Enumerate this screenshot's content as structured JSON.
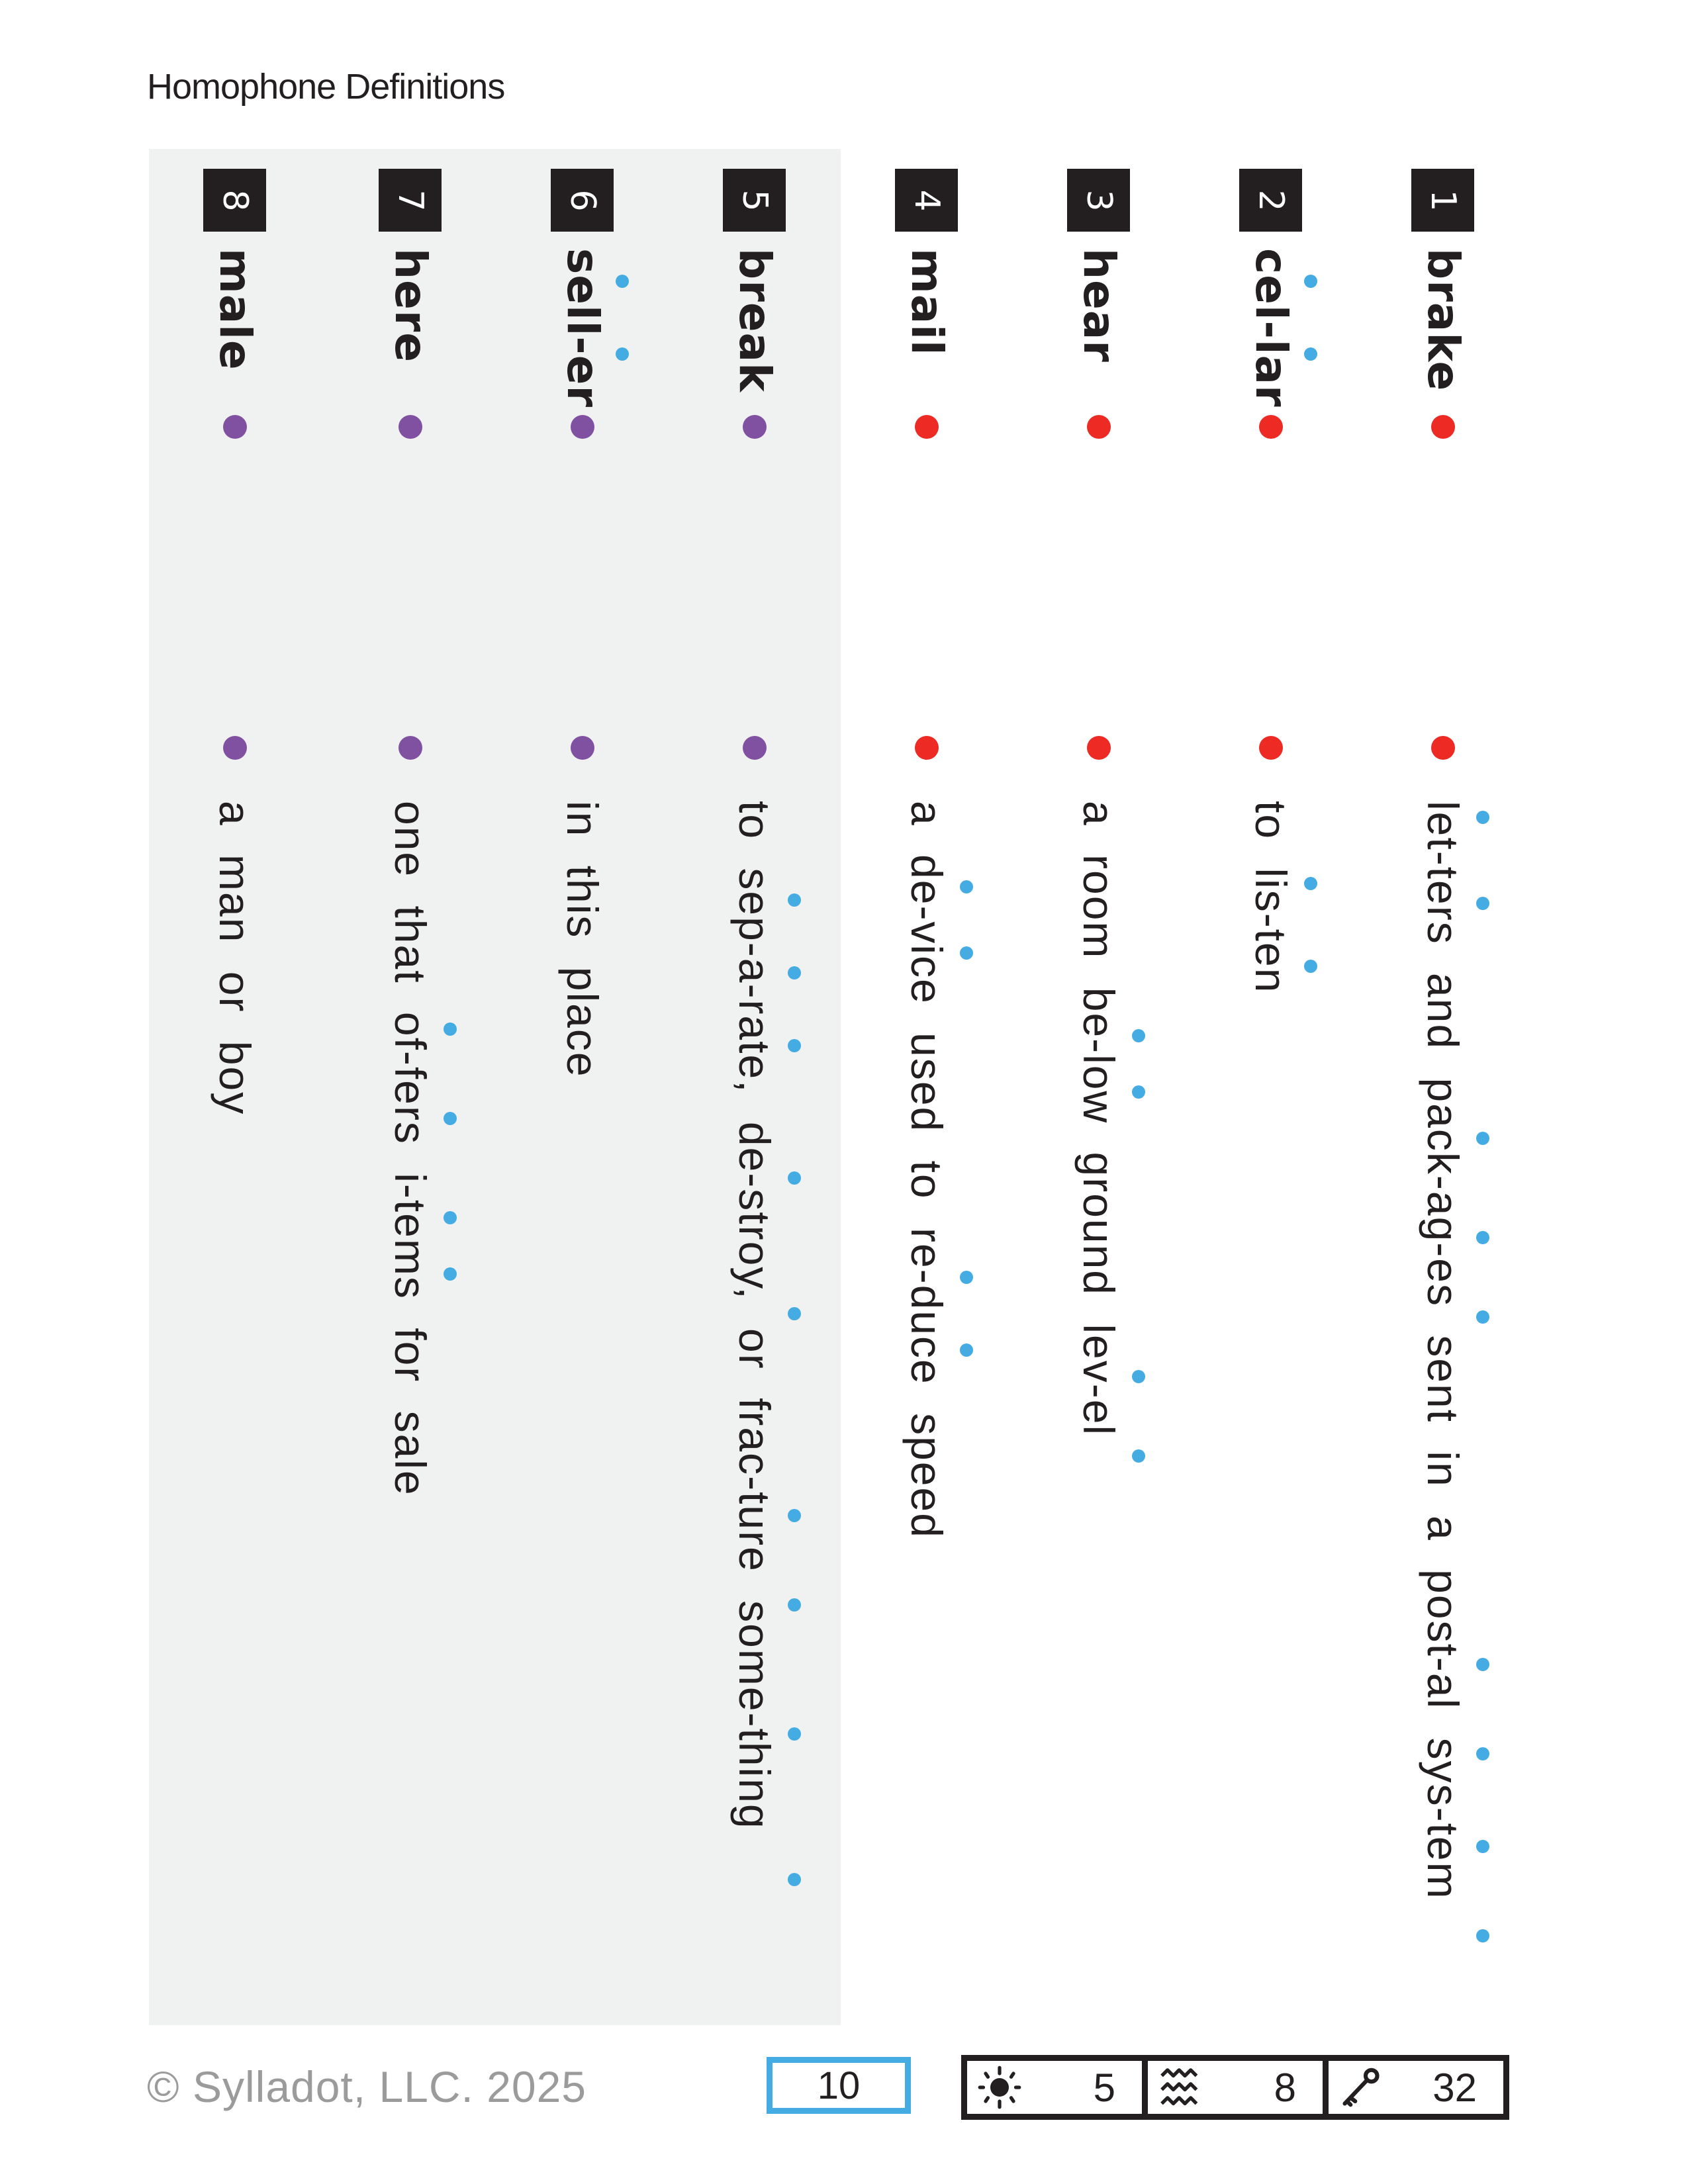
{
  "title": "Homophone Definitions",
  "colors": {
    "red": "#ee2a24",
    "purple": "#8151a1",
    "syllable_blue": "#45ace3",
    "panel_bg": "#f0f1f1",
    "box_dark": "#231f20"
  },
  "entries": [
    {
      "number": "1",
      "word": "brake",
      "dot": "red",
      "definition": "let-ters and pack-ag-es sent in a post-al sys-tem",
      "word_dots": [],
      "def_dots": [
        1235,
        1365,
        1720,
        1870,
        1990,
        2515,
        2650,
        2790,
        2925
      ]
    },
    {
      "number": "2",
      "word": "cel-lar",
      "dot": "red",
      "definition": "to lis-ten",
      "word_dots": [
        425,
        535
      ],
      "def_dots": [
        1335,
        1460
      ]
    },
    {
      "number": "3",
      "word": "hear",
      "dot": "red",
      "definition": "a room be-low ground lev-el",
      "word_dots": [],
      "def_dots": [
        1565,
        1650,
        2080,
        2200
      ]
    },
    {
      "number": "4",
      "word": "mail",
      "dot": "red",
      "definition": "a de-vice used to re-duce speed",
      "word_dots": [],
      "def_dots": [
        1340,
        1440,
        1930,
        2040
      ]
    },
    {
      "number": "5",
      "word": "break",
      "dot": "purple",
      "definition": "to sep-a-rate, de-stroy, or frac-ture some-thing",
      "word_dots": [],
      "def_dots": [
        1360,
        1470,
        1580,
        1780,
        1985,
        2290,
        2425,
        2620,
        2840
      ]
    },
    {
      "number": "6",
      "word": "sell-er",
      "dot": "purple",
      "definition": "in this place",
      "word_dots": [
        425,
        535
      ],
      "def_dots": []
    },
    {
      "number": "7",
      "word": "here",
      "dot": "purple",
      "definition": "one that of-fers i-tems for sale",
      "word_dots": [],
      "def_dots": [
        1555,
        1690,
        1840,
        1925
      ]
    },
    {
      "number": "8",
      "word": "male",
      "dot": "purple",
      "definition": "a man or boy",
      "word_dots": [],
      "def_dots": []
    }
  ],
  "footer": {
    "copyright": "© Sylladot, LLC.  2025",
    "page_number": "10",
    "stats": [
      {
        "icon": "sun-icon",
        "value": "5"
      },
      {
        "icon": "waves-icon",
        "value": "8"
      },
      {
        "icon": "key-icon",
        "value": "32"
      }
    ]
  }
}
